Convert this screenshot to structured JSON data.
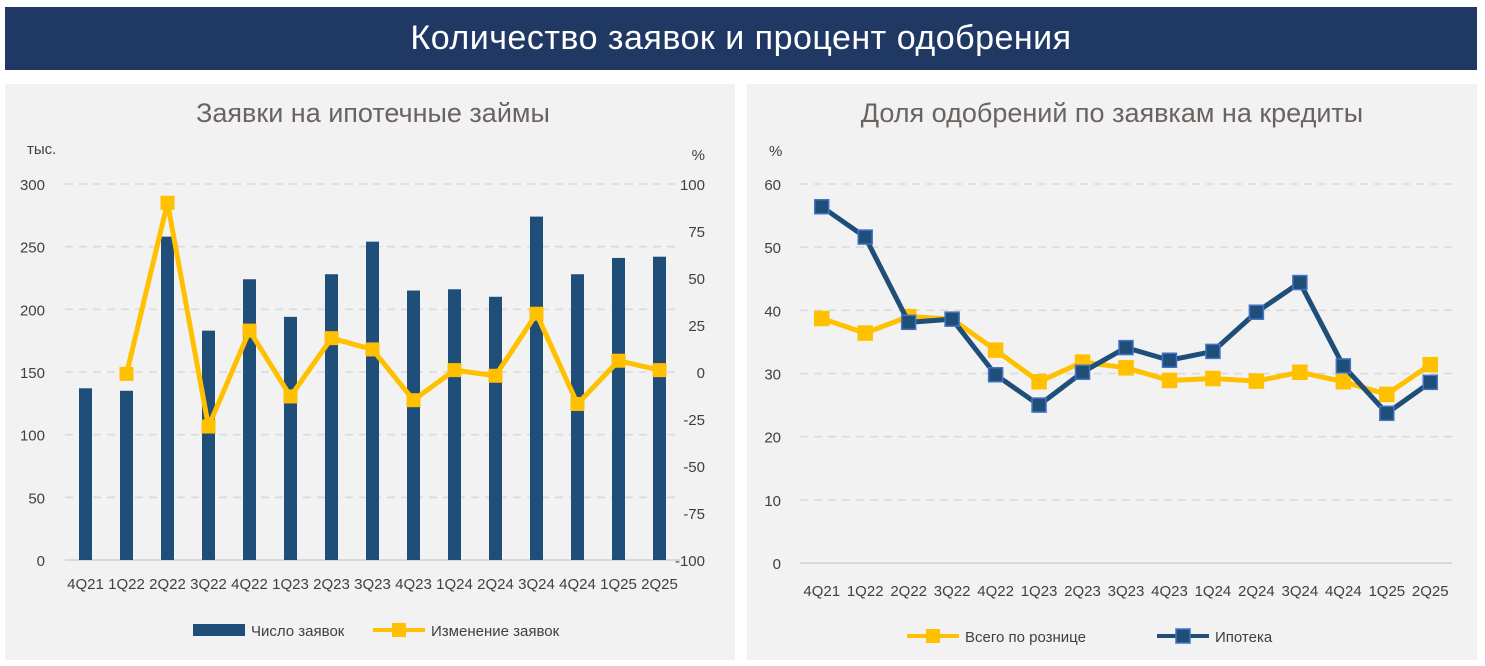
{
  "title": "Количество заявок и процент одобрения",
  "colors": {
    "navy": "#1f4e79",
    "yellow": "#ffc000",
    "banner": "#1f3864"
  },
  "chart_data": [
    {
      "type": "bar",
      "title": "Заявки на ипотечные займы",
      "ylabel": "тыс.",
      "y2label": "%",
      "ylim": [
        0,
        300
      ],
      "y2lim": [
        -100,
        100
      ],
      "yticks": [
        "0",
        "50",
        "100",
        "150",
        "200",
        "250",
        "300"
      ],
      "y2ticks": [
        "-100",
        "-75",
        "-50",
        "-25",
        "0",
        "25",
        "50",
        "75",
        "100"
      ],
      "categories": [
        "4Q21",
        "1Q22",
        "2Q22",
        "3Q22",
        "4Q22",
        "1Q23",
        "2Q23",
        "3Q23",
        "4Q23",
        "1Q24",
        "2Q24",
        "3Q24",
        "4Q24",
        "1Q25",
        "2Q25"
      ],
      "series": [
        {
          "name": "Число заявок",
          "kind": "bar",
          "axis": "left",
          "values": [
            137,
            135,
            258,
            183,
            224,
            194,
            228,
            254,
            215,
            216,
            210,
            274,
            228,
            241,
            242
          ]
        },
        {
          "name": "Изменение заявок",
          "kind": "line",
          "axis": "right",
          "values": [
            null,
            -1,
            90,
            -29,
            22,
            -13,
            18,
            12,
            -15,
            1,
            -2,
            31,
            -17,
            6,
            1
          ]
        }
      ],
      "grid": true,
      "legend": "bottom"
    },
    {
      "type": "line",
      "title": "Доля одобрений по заявкам на кредиты",
      "ylabel": "%",
      "ylim": [
        0,
        60
      ],
      "yticks": [
        "0",
        "10",
        "20",
        "30",
        "40",
        "50",
        "60"
      ],
      "categories": [
        "4Q21",
        "1Q22",
        "2Q22",
        "3Q22",
        "4Q22",
        "1Q23",
        "2Q23",
        "3Q23",
        "4Q23",
        "1Q24",
        "2Q24",
        "3Q24",
        "4Q24",
        "1Q25",
        "2Q25"
      ],
      "series": [
        {
          "name": "Всего по рознице",
          "values": [
            38.7,
            36.4,
            39.0,
            38.6,
            33.7,
            28.7,
            31.8,
            30.9,
            28.9,
            29.2,
            28.8,
            30.2,
            28.7,
            26.7,
            31.4
          ]
        },
        {
          "name": "Ипотека",
          "values": [
            56.4,
            51.6,
            38.1,
            38.6,
            29.8,
            25.0,
            30.2,
            34.1,
            32.1,
            33.5,
            39.7,
            44.4,
            31.2,
            23.7,
            28.6
          ]
        }
      ],
      "grid": true,
      "legend": "bottom"
    }
  ]
}
